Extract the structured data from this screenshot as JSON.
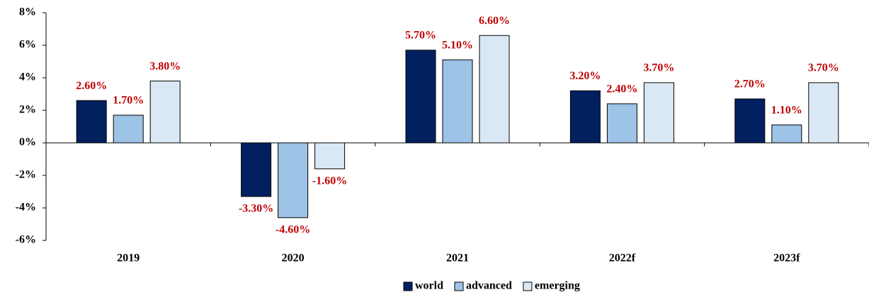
{
  "chart_data": {
    "type": "bar",
    "categories": [
      "2019",
      "2020",
      "2021",
      "2022f",
      "2023f"
    ],
    "series": [
      {
        "name": "world",
        "color": "#002060",
        "values": [
          2.6,
          -3.3,
          5.7,
          3.2,
          2.7
        ],
        "value_labels": [
          "2.60%",
          "-3.30%",
          "5.70%",
          "3.20%",
          "2.70%"
        ]
      },
      {
        "name": "advanced",
        "color": "#9dc3e6",
        "values": [
          1.7,
          -4.6,
          5.1,
          2.4,
          1.1
        ],
        "value_labels": [
          "1.70%",
          "-4.60%",
          "5.10%",
          "2.40%",
          "1.10%"
        ]
      },
      {
        "name": "emerging",
        "color": "#dae8f5",
        "values": [
          3.8,
          -1.6,
          6.6,
          3.7,
          3.7
        ],
        "value_labels": [
          "3.80%",
          "-1.60%",
          "6.60%",
          "3.70%",
          "3.70%"
        ]
      }
    ],
    "ylim": [
      -6,
      8
    ],
    "yticks": [
      {
        "value": -6,
        "label": "-6%"
      },
      {
        "value": -4,
        "label": "-4%"
      },
      {
        "value": -2,
        "label": "-2%"
      },
      {
        "value": 0,
        "label": "0%"
      },
      {
        "value": 2,
        "label": "2%"
      },
      {
        "value": 4,
        "label": "4%"
      },
      {
        "value": 6,
        "label": "6%"
      },
      {
        "value": 8,
        "label": "8%"
      }
    ],
    "label_color": "#c00000",
    "legend": "bottom"
  }
}
